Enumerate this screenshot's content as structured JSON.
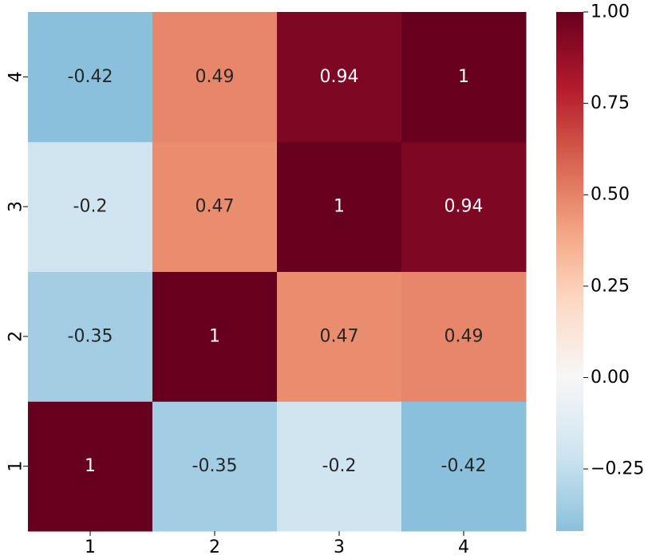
{
  "chart_data": {
    "type": "heatmap",
    "title": "",
    "xlabel": "",
    "ylabel": "",
    "x_categories": [
      "1",
      "2",
      "3",
      "4"
    ],
    "y_categories": [
      "1",
      "2",
      "3",
      "4"
    ],
    "y_order": "bottom-to-top",
    "matrix": [
      [
        1,
        -0.35,
        -0.2,
        -0.42
      ],
      [
        -0.35,
        1,
        0.47,
        0.49
      ],
      [
        -0.2,
        0.47,
        1,
        0.94
      ],
      [
        -0.42,
        0.49,
        0.94,
        1
      ]
    ],
    "cell_labels": [
      [
        "1",
        "-0.35",
        "-0.2",
        "-0.42"
      ],
      [
        "-0.35",
        "1",
        "0.47",
        "0.49"
      ],
      [
        "-0.2",
        "0.47",
        "1",
        "0.94"
      ],
      [
        "-0.42",
        "0.49",
        "0.94",
        "1"
      ]
    ],
    "colormap": "RdBu_r",
    "colorbar": {
      "vmin": -0.42,
      "vmax": 1.0,
      "center": 0,
      "ticks": [
        1.0,
        0.75,
        0.5,
        0.25,
        0.0,
        -0.25
      ],
      "tick_labels": [
        "1.00",
        "0.75",
        "0.50",
        "0.25",
        "0.00",
        "−0.25"
      ]
    },
    "grid": false
  }
}
